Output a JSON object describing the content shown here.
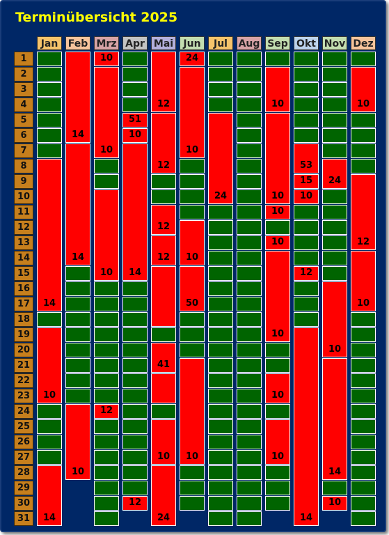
{
  "title": "Terminübersicht 2025",
  "days": [
    "1",
    "2",
    "3",
    "4",
    "5",
    "6",
    "7",
    "8",
    "9",
    "10",
    "11",
    "12",
    "13",
    "14",
    "15",
    "16",
    "17",
    "18",
    "19",
    "20",
    "21",
    "22",
    "23",
    "24",
    "25",
    "26",
    "27",
    "28",
    "29",
    "30",
    "31"
  ],
  "colors": {
    "background": "#002766",
    "free": "#006400",
    "booked": "#ff0000",
    "day_label": "#c67f1d",
    "title": "#ffff00"
  },
  "months": [
    {
      "name": "Jan",
      "color": "#f5c36b",
      "length": 31,
      "blocks": [
        {
          "start": 8,
          "end": 17,
          "label": "14"
        },
        {
          "start": 19,
          "end": 23,
          "label": "10"
        },
        {
          "start": 28,
          "end": 31,
          "label": "14"
        }
      ]
    },
    {
      "name": "Feb",
      "color": "#f7c49c",
      "length": 28,
      "blocks": [
        {
          "start": 1,
          "end": 6,
          "label": "14"
        },
        {
          "start": 7,
          "end": 14,
          "label": "14"
        },
        {
          "start": 24,
          "end": 28,
          "label": "10"
        }
      ]
    },
    {
      "name": "Mrz",
      "color": "#d7a3a6",
      "length": 31,
      "blocks": [
        {
          "start": 1,
          "end": 1,
          "label": "10"
        },
        {
          "start": 2,
          "end": 7,
          "label": "10"
        },
        {
          "start": 10,
          "end": 15,
          "label": "10"
        },
        {
          "start": 24,
          "end": 24,
          "label": "12"
        }
      ]
    },
    {
      "name": "Apr",
      "color": "#c3c3c3",
      "length": 30,
      "blocks": [
        {
          "start": 5,
          "end": 5,
          "label": "51"
        },
        {
          "start": 6,
          "end": 6,
          "label": "10"
        },
        {
          "start": 7,
          "end": 15,
          "label": "14"
        },
        {
          "start": 30,
          "end": 30,
          "label": "12"
        }
      ]
    },
    {
      "name": "Mai",
      "color": "#b4b0dc",
      "length": 31,
      "blocks": [
        {
          "start": 1,
          "end": 4,
          "label": "12"
        },
        {
          "start": 5,
          "end": 8,
          "label": "12"
        },
        {
          "start": 11,
          "end": 12,
          "label": "12"
        },
        {
          "start": 13,
          "end": 14,
          "label": "12"
        },
        {
          "start": 15,
          "end": 18,
          "label": ""
        },
        {
          "start": 20,
          "end": 21,
          "label": "41"
        },
        {
          "start": 22,
          "end": 23,
          "label": ""
        },
        {
          "start": 25,
          "end": 27,
          "label": "10"
        },
        {
          "start": 28,
          "end": 31,
          "label": "24"
        }
      ]
    },
    {
      "name": "Jun",
      "color": "#c3ddb0",
      "length": 30,
      "blocks": [
        {
          "start": 1,
          "end": 1,
          "label": "24"
        },
        {
          "start": 2,
          "end": 7,
          "label": "10"
        },
        {
          "start": 12,
          "end": 14,
          "label": "10"
        },
        {
          "start": 15,
          "end": 17,
          "label": "50"
        },
        {
          "start": 21,
          "end": 27,
          "label": "10"
        }
      ]
    },
    {
      "name": "Jul",
      "color": "#f5c36b",
      "length": 31,
      "blocks": [
        {
          "start": 5,
          "end": 10,
          "label": "24"
        }
      ]
    },
    {
      "name": "Aug",
      "color": "#d7a3a6",
      "length": 31,
      "blocks": []
    },
    {
      "name": "Sep",
      "color": "#c3ddb0",
      "length": 30,
      "blocks": [
        {
          "start": 2,
          "end": 4,
          "label": "10"
        },
        {
          "start": 5,
          "end": 10,
          "label": "10"
        },
        {
          "start": 11,
          "end": 11,
          "label": "10"
        },
        {
          "start": 13,
          "end": 13,
          "label": "10"
        },
        {
          "start": 14,
          "end": 19,
          "label": "10"
        },
        {
          "start": 22,
          "end": 23,
          "label": "10"
        },
        {
          "start": 25,
          "end": 27,
          "label": "10"
        }
      ]
    },
    {
      "name": "Okt",
      "color": "#bdd3ec",
      "length": 31,
      "blocks": [
        {
          "start": 7,
          "end": 8,
          "label": "53"
        },
        {
          "start": 9,
          "end": 9,
          "label": "15"
        },
        {
          "start": 10,
          "end": 10,
          "label": "10"
        },
        {
          "start": 15,
          "end": 15,
          "label": "12"
        },
        {
          "start": 19,
          "end": 31,
          "label": "14"
        }
      ]
    },
    {
      "name": "Nov",
      "color": "#c3ddb0",
      "length": 30,
      "blocks": [
        {
          "start": 8,
          "end": 9,
          "label": "24"
        },
        {
          "start": 16,
          "end": 20,
          "label": "10"
        },
        {
          "start": 21,
          "end": 28,
          "label": "14"
        },
        {
          "start": 30,
          "end": 30,
          "label": "10"
        }
      ]
    },
    {
      "name": "Dez",
      "color": "#f7c49c",
      "length": 31,
      "blocks": [
        {
          "start": 2,
          "end": 4,
          "label": "10"
        },
        {
          "start": 9,
          "end": 13,
          "label": "12"
        },
        {
          "start": 14,
          "end": 17,
          "label": "10"
        }
      ]
    }
  ]
}
